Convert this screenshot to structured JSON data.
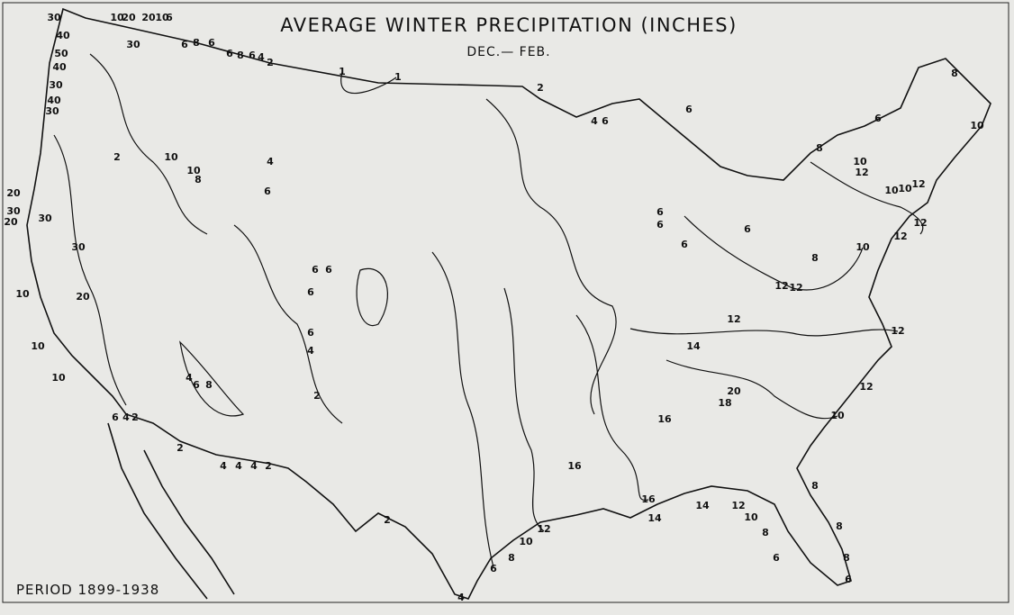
{
  "title": "AVERAGE WINTER PRECIPITATION (INCHES)",
  "subtitle": "DEC.— FEB.",
  "period": "PERIOD 1899-1938",
  "contour_labels": [
    30,
    40,
    50,
    40,
    30,
    40,
    30,
    10,
    20,
    20,
    10,
    6,
    30,
    6,
    8,
    6,
    6,
    8,
    6,
    4,
    2,
    1,
    1,
    2,
    6,
    4,
    6,
    6,
    8,
    10,
    8,
    20,
    30,
    20,
    30,
    10,
    10,
    10,
    6,
    4,
    2,
    2,
    4,
    4,
    4,
    2,
    2,
    4,
    6,
    8,
    10,
    12,
    16,
    16,
    14,
    14,
    12,
    10,
    8,
    6,
    8,
    8,
    8,
    6,
    10,
    12,
    12,
    12,
    12,
    10,
    12,
    14,
    18,
    20,
    16,
    12,
    12,
    8,
    6,
    6,
    6,
    6,
    10,
    10,
    12,
    12,
    10,
    6,
    6,
    6,
    6,
    4,
    2,
    4,
    6,
    8,
    4,
    6,
    2,
    20,
    30,
    10,
    10,
    8
  ]
}
